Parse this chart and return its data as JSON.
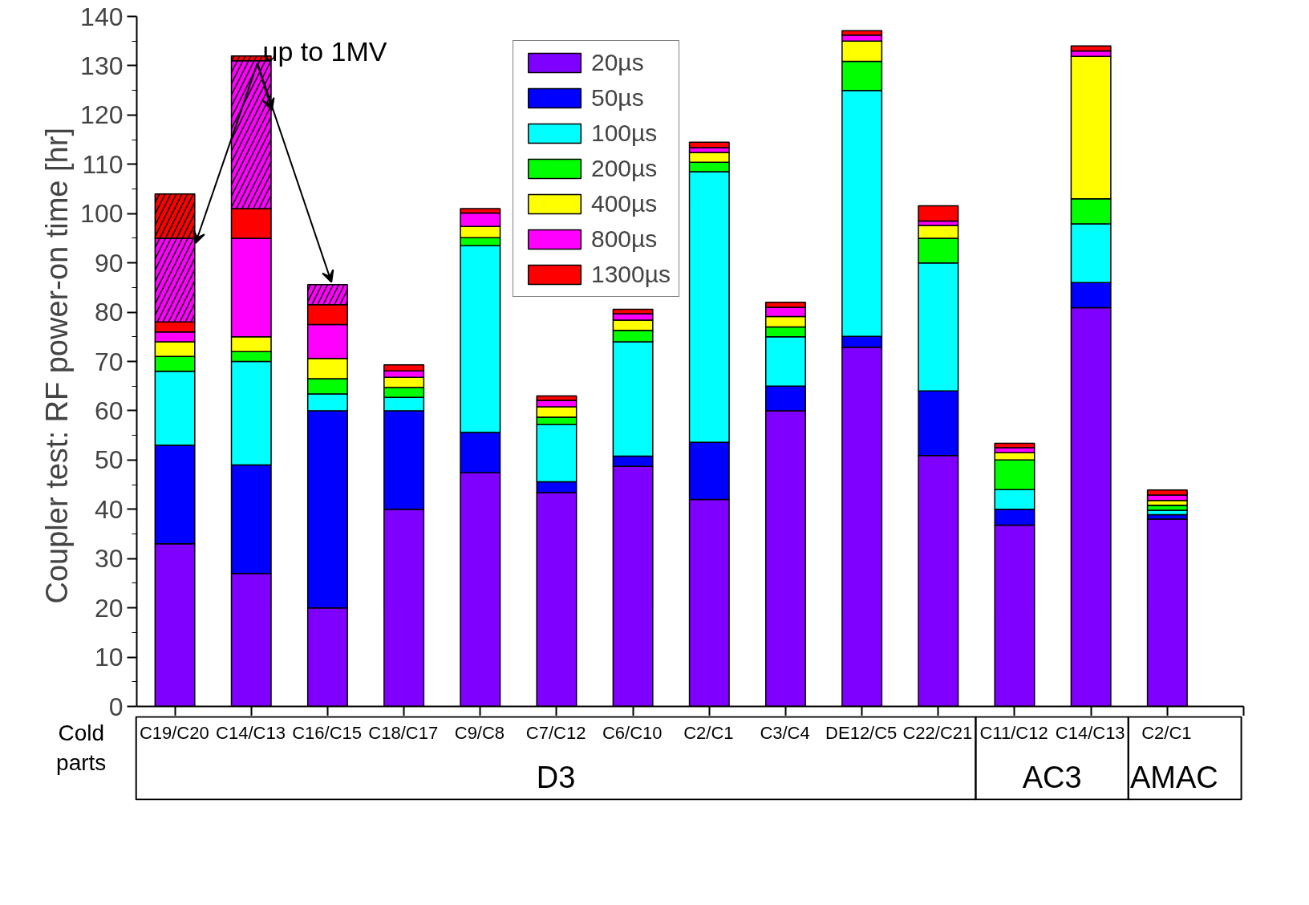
{
  "chart_data": {
    "type": "bar",
    "stacked": true,
    "categories": [
      "C19/C20",
      "C14/C13",
      "C16/C15",
      "C18/C17",
      "C9/C8",
      "C7/C12",
      "C6/C10",
      "C2/C1",
      "C3/C4",
      "DE12/C5",
      "C22/C21",
      "C11/C12",
      "C14/C13",
      "C2/C1"
    ],
    "series": [
      {
        "name": "20µs",
        "color": "#8000ff",
        "values": [
          33,
          27,
          20,
          40,
          47.4,
          43.4,
          48.7,
          42,
          60,
          72.9,
          50.9,
          36.8,
          80.9,
          38
        ]
      },
      {
        "name": "50µs",
        "color": "#0000ff",
        "values": [
          20,
          22,
          40,
          20,
          8.2,
          2.2,
          2.1,
          11.6,
          5,
          2.2,
          13.1,
          3.2,
          5.1,
          0.9
        ]
      },
      {
        "name": "100µs",
        "color": "#00ffff",
        "values": [
          15,
          21,
          3.4,
          2.7,
          37.9,
          11.6,
          23.2,
          54.9,
          10,
          49.9,
          26,
          4,
          11.9,
          0.9
        ]
      },
      {
        "name": "200µs",
        "color": "#00ff00",
        "values": [
          3,
          2,
          3.1,
          2,
          1.6,
          1.5,
          2.3,
          1.9,
          2,
          5.9,
          5,
          6,
          5.1,
          1
        ]
      },
      {
        "name": "400µs",
        "color": "#ffff00",
        "values": [
          3,
          3,
          4.1,
          2.1,
          2.3,
          2.1,
          2.1,
          2,
          2.1,
          4.1,
          2.6,
          1.5,
          28.9,
          1
        ]
      },
      {
        "name": "800µs",
        "color": "#ff00ff",
        "values": [
          2,
          20,
          6.9,
          1.3,
          2.7,
          1.3,
          1.3,
          1,
          1.9,
          1.2,
          0.9,
          1,
          1.1,
          1.1
        ]
      },
      {
        "name": "1300µs",
        "color": "#ff0000",
        "values": [
          2,
          6,
          4,
          1.2,
          0.9,
          0.9,
          0.9,
          1.1,
          1,
          0.9,
          3.1,
          0.9,
          1,
          1
        ]
      },
      {
        "color": "#ff00ff",
        "values": [
          17,
          30,
          4.1,
          null,
          null,
          null,
          null,
          null,
          null,
          null,
          null,
          null,
          null,
          null
        ]
      },
      {
        "color": "#ff0000",
        "values": [
          9,
          1,
          null,
          null,
          null,
          null,
          null,
          null,
          null,
          null,
          null,
          null,
          null,
          null
        ]
      }
    ],
    "ylabel": "Coupler test:  RF power-on time [hr]",
    "xlabel": "Cold parts",
    "ylim": [
      0,
      140
    ],
    "yticks": [
      0,
      10,
      20,
      30,
      40,
      50,
      60,
      70,
      80,
      90,
      100,
      110,
      120,
      130,
      140
    ],
    "legend": "top",
    "annotations": [
      {
        "text": "up to 1MV",
        "x": "C16/C15",
        "y": 85.6
      },
      "D3",
      "AC3",
      "AMAC"
    ]
  }
}
